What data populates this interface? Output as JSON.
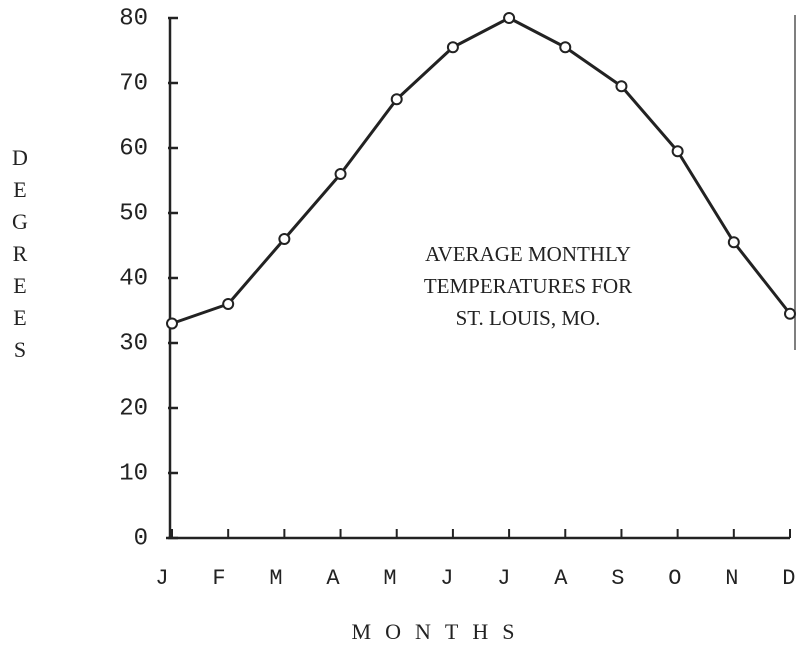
{
  "chart_data": {
    "type": "line",
    "annotation": [
      "AVERAGE MONTHLY",
      "TEMPERATURES FOR",
      "ST. LOUIS, MO."
    ],
    "y_label": "DEGREES",
    "x_label": "MONTHS",
    "categories": [
      "J",
      "F",
      "M",
      "A",
      "M",
      "J",
      "J",
      "A",
      "S",
      "O",
      "N",
      "D"
    ],
    "series": [
      {
        "color": "#222222",
        "values": [
          33,
          36,
          46,
          56,
          67.5,
          75.5,
          80,
          75.5,
          69.5,
          59.5,
          45.5,
          34.5
        ]
      }
    ],
    "ylim": [
      0,
      80
    ],
    "yticks": [
      0,
      10,
      20,
      30,
      40,
      50,
      60,
      70,
      80
    ],
    "grid": false
  }
}
